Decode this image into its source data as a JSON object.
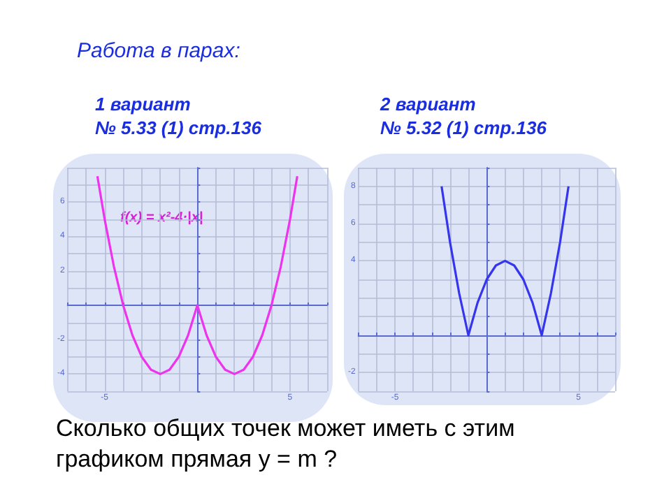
{
  "chart_data": [
    {
      "type": "line",
      "title": "1 вариант\n№ 5.33 (1) стр.136",
      "annotations": [
        "Работа в парах:",
        "f(x) = x²-4·|x|",
        "Сколько общих точек может иметь с этим графиком прямая y = m ?"
      ],
      "x": [
        -5.39,
        -5,
        -4.5,
        -4,
        -3.5,
        -3,
        -2.5,
        -2,
        -1.5,
        -1,
        -0.5,
        0,
        0.5,
        1,
        1.5,
        2,
        2.5,
        3,
        3.5,
        4,
        4.5,
        5,
        5.39
      ],
      "series": [
        {
          "color": "#ee33ee",
          "values": [
            7.5,
            5,
            2.25,
            0,
            -1.75,
            -3,
            -3.75,
            -4,
            -3.75,
            -3,
            -1.75,
            0,
            -1.75,
            -3,
            -3.75,
            -4,
            -3.75,
            -3,
            -1.75,
            0,
            2.25,
            5,
            7.5
          ]
        }
      ],
      "xlim": [
        -7,
        7
      ],
      "ylim": [
        -5,
        8
      ],
      "xticks": [
        {
          "value": -7,
          "label": null
        },
        {
          "value": -6,
          "label": null
        },
        {
          "value": -5,
          "label": "-5"
        },
        {
          "value": -4,
          "label": null
        },
        {
          "value": -3,
          "label": null
        },
        {
          "value": -2,
          "label": null
        },
        {
          "value": -1,
          "label": null
        },
        {
          "value": 0,
          "label": null
        },
        {
          "value": 1,
          "label": null
        },
        {
          "value": 2,
          "label": null
        },
        {
          "value": 3,
          "label": null
        },
        {
          "value": 4,
          "label": null
        },
        {
          "value": 5,
          "label": "5"
        },
        {
          "value": 6,
          "label": null
        },
        {
          "value": 7,
          "label": null
        }
      ],
      "yticks": [
        {
          "value": -5,
          "label": null
        },
        {
          "value": -4,
          "label": "-4"
        },
        {
          "value": -3,
          "label": null
        },
        {
          "value": -2,
          "label": "-2"
        },
        {
          "value": -1,
          "label": null
        },
        {
          "value": 0,
          "label": null
        },
        {
          "value": 1,
          "label": null
        },
        {
          "value": 2,
          "label": "2"
        },
        {
          "value": 3,
          "label": null
        },
        {
          "value": 4,
          "label": "4"
        },
        {
          "value": 5,
          "label": null
        },
        {
          "value": 6,
          "label": "6"
        },
        {
          "value": 7,
          "label": null
        },
        {
          "value": 8,
          "label": null
        }
      ],
      "grid": true,
      "marker": "none"
    },
    {
      "type": "line",
      "title": "2 вариант\n№ 5.32 (1) стр.136",
      "x": [
        -2.46,
        -2,
        -1.5,
        -1,
        -0.5,
        0,
        0.5,
        1,
        1.5,
        2,
        2.5,
        3,
        3.5,
        4,
        4.46
      ],
      "series": [
        {
          "color": "#3535ee",
          "values": [
            8,
            5,
            2.25,
            0,
            1.75,
            3,
            3.75,
            4,
            3.75,
            3,
            1.75,
            0,
            2.25,
            5,
            8
          ]
        }
      ],
      "xlim": [
        -7,
        7
      ],
      "ylim": [
        -3,
        9
      ],
      "xticks": [
        {
          "value": -7,
          "label": null
        },
        {
          "value": -6,
          "label": null
        },
        {
          "value": -5,
          "label": "-5"
        },
        {
          "value": -4,
          "label": null
        },
        {
          "value": -3,
          "label": null
        },
        {
          "value": -2,
          "label": null
        },
        {
          "value": -1,
          "label": null
        },
        {
          "value": 0,
          "label": null
        },
        {
          "value": 1,
          "label": null
        },
        {
          "value": 2,
          "label": null
        },
        {
          "value": 3,
          "label": null
        },
        {
          "value": 4,
          "label": null
        },
        {
          "value": 5,
          "label": "5"
        },
        {
          "value": 6,
          "label": null
        },
        {
          "value": 7,
          "label": null
        }
      ],
      "yticks": [
        {
          "value": -3,
          "label": null
        },
        {
          "value": -2,
          "label": "-2"
        },
        {
          "value": -1,
          "label": null
        },
        {
          "value": 0,
          "label": null
        },
        {
          "value": 1,
          "label": null
        },
        {
          "value": 2,
          "label": null
        },
        {
          "value": 3,
          "label": null
        },
        {
          "value": 4,
          "label": "4"
        },
        {
          "value": 5,
          "label": null
        },
        {
          "value": 6,
          "label": "6"
        },
        {
          "value": 7,
          "label": null
        },
        {
          "value": 8,
          "label": "8"
        },
        {
          "value": 9,
          "label": null
        }
      ],
      "grid": true,
      "marker": "none"
    }
  ]
}
